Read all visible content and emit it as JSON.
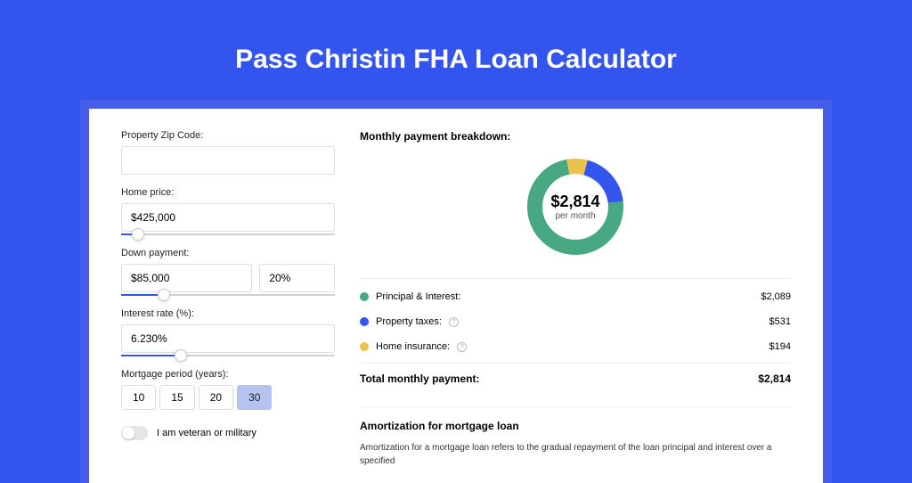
{
  "page": {
    "title": "Pass Christin FHA Loan Calculator",
    "background_color": "#3355ee",
    "panel_color": "#455de8",
    "card_color": "#ffffff"
  },
  "form": {
    "zip": {
      "label": "Property Zip Code:",
      "value": ""
    },
    "home_price": {
      "label": "Home price:",
      "value": "$425,000",
      "slider_pct": 8
    },
    "down_payment": {
      "label": "Down payment:",
      "amount": "$85,000",
      "percent": "20%",
      "slider_pct": 20
    },
    "interest_rate": {
      "label": "Interest rate (%):",
      "value": "6.230%",
      "slider_pct": 28
    },
    "mortgage_period": {
      "label": "Mortgage period (years):",
      "options": [
        "10",
        "15",
        "20",
        "30"
      ],
      "selected": "30"
    },
    "veteran": {
      "label": "I am veteran or military",
      "checked": false
    }
  },
  "breakdown": {
    "title": "Monthly payment breakdown:",
    "donut": {
      "center_value": "$2,814",
      "center_sub": "per month",
      "segments": [
        {
          "name": "Principal & Interest",
          "color": "#47a882",
          "value": "$2,089",
          "pct": 74,
          "info": false
        },
        {
          "name": "Property taxes",
          "color": "#3355ee",
          "value": "$531",
          "pct": 19,
          "info": true
        },
        {
          "name": "Home insurance",
          "color": "#eac24c",
          "value": "$194",
          "pct": 7,
          "info": true
        }
      ]
    },
    "total": {
      "label": "Total monthly payment:",
      "value": "$2,814"
    }
  },
  "amortization": {
    "title": "Amortization for mortgage loan",
    "text": "Amortization for a mortgage loan refers to the gradual repayment of the loan principal and interest over a specified"
  }
}
